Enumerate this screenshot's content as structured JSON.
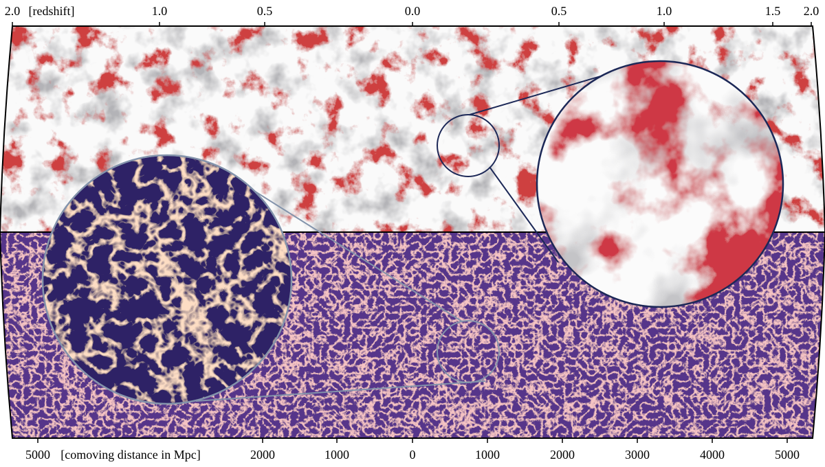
{
  "top_axis": {
    "label": "[redshift]",
    "ticks": [
      "2.0",
      "1.0",
      "0.5",
      "0.0",
      "0.5",
      "1.0",
      "1.5",
      "2.0"
    ]
  },
  "bottom_axis": {
    "label": "[comoving distance in Mpc]",
    "ticks": [
      "5000",
      "2000",
      "1000",
      "0",
      "1000",
      "2000",
      "3000",
      "4000",
      "5000"
    ]
  }
}
